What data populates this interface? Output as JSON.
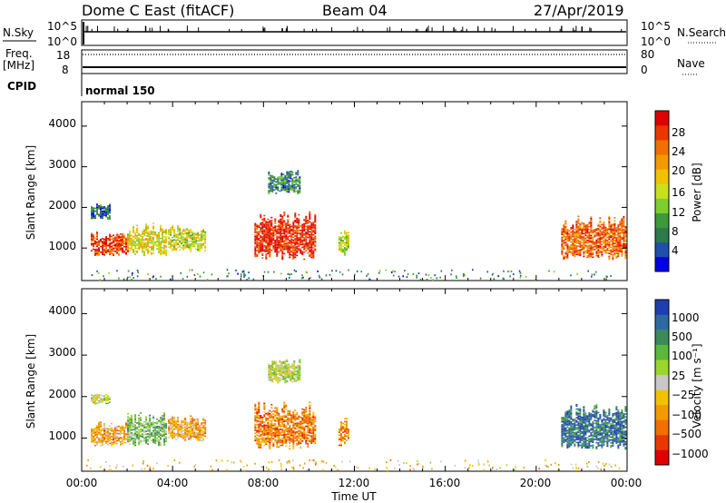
{
  "header": {
    "station": "Dome C East (fitACF)",
    "beam": "Beam 04",
    "date": "27/Apr/2019"
  },
  "strips": {
    "nsky_label": "N.Sky",
    "nsky_ticks": [
      "10^5",
      "10^0"
    ],
    "nsearch_label": "N.Search",
    "nsearch_ticks": [
      "10^5",
      "10^0"
    ],
    "freq_label_line1": "Freq.",
    "freq_label_line2": "[MHz]",
    "freq_ticks": [
      "18",
      "8"
    ],
    "nave_label": "Nave",
    "nave_ticks": [
      "80",
      "0"
    ],
    "cpid_label": "CPID",
    "cpid_value": "normal 150"
  },
  "chart_data": [
    {
      "type": "heatmap",
      "name": "power-panel",
      "ylabel": "Slant Range [km]",
      "yticks": [
        "4000",
        "3000",
        "2000",
        "1000"
      ],
      "ylim": [
        200,
        4600
      ],
      "xlim": [
        0,
        24
      ],
      "colorbar_label": "Power [dB]",
      "colorbar_ticks": [
        "28",
        "24",
        "20",
        "16",
        "12",
        "8",
        "4"
      ],
      "colorbar_colors": [
        "#0000e6",
        "#1f4fa8",
        "#2e7a4a",
        "#3c9a3c",
        "#7dce2e",
        "#c8e020",
        "#f2c200",
        "#f29a00",
        "#f07000",
        "#e83800",
        "#e00000"
      ],
      "echo_regions": [
        {
          "t": [
            0.4,
            2.0
          ],
          "r": [
            800,
            1400
          ],
          "level": 0.85
        },
        {
          "t": [
            0.4,
            1.2
          ],
          "r": [
            1700,
            2100
          ],
          "level": 0.2
        },
        {
          "t": [
            2.0,
            3.7
          ],
          "r": [
            800,
            1600
          ],
          "level": 0.55
        },
        {
          "t": [
            3.8,
            5.4
          ],
          "r": [
            900,
            1550
          ],
          "level": 0.5
        },
        {
          "t": [
            7.6,
            10.3
          ],
          "r": [
            700,
            1900
          ],
          "level": 0.9
        },
        {
          "t": [
            8.2,
            9.6
          ],
          "r": [
            2300,
            2900
          ],
          "level": 0.25
        },
        {
          "t": [
            11.3,
            11.7
          ],
          "r": [
            800,
            1500
          ],
          "level": 0.5
        },
        {
          "t": [
            21.1,
            23.9
          ],
          "r": [
            700,
            1800
          ],
          "level": 0.8
        }
      ]
    },
    {
      "type": "heatmap",
      "name": "velocity-panel",
      "ylabel": "Slant Range [km]",
      "yticks": [
        "4000",
        "3000",
        "2000",
        "1000"
      ],
      "ylim": [
        200,
        4600
      ],
      "xlim": [
        0,
        24
      ],
      "xticks": [
        "00:00",
        "04:00",
        "08:00",
        "12:00",
        "16:00",
        "20:00",
        "00:00"
      ],
      "xlabel": "Time UT",
      "colorbar_label": "Velocity [m s⁻¹]",
      "colorbar_ticks": [
        "1000",
        "500",
        "100",
        "25",
        "−25",
        "−100",
        "−500",
        "−1000"
      ],
      "colorbar_colors": [
        "#1f3fb0",
        "#2e6aa0",
        "#3c8a5a",
        "#5cb83c",
        "#9ad62e",
        "#c8c8c8",
        "#f2c200",
        "#f29a00",
        "#f07000",
        "#e83800",
        "#e00000"
      ],
      "echo_regions": [
        {
          "t": [
            0.4,
            2.0
          ],
          "r": [
            800,
            1400
          ],
          "level": 0.65
        },
        {
          "t": [
            0.4,
            1.2
          ],
          "r": [
            1800,
            2100
          ],
          "level": 0.5
        },
        {
          "t": [
            2.0,
            3.7
          ],
          "r": [
            800,
            1600
          ],
          "level": 0.35
        },
        {
          "t": [
            3.8,
            5.4
          ],
          "r": [
            900,
            1550
          ],
          "level": 0.65
        },
        {
          "t": [
            7.6,
            10.3
          ],
          "r": [
            700,
            1900
          ],
          "level": 0.75
        },
        {
          "t": [
            8.2,
            9.6
          ],
          "r": [
            2300,
            2900
          ],
          "level": 0.45
        },
        {
          "t": [
            11.3,
            11.7
          ],
          "r": [
            800,
            1500
          ],
          "level": 0.7
        },
        {
          "t": [
            21.1,
            23.9
          ],
          "r": [
            700,
            1800
          ],
          "level": 0.15
        }
      ]
    }
  ]
}
